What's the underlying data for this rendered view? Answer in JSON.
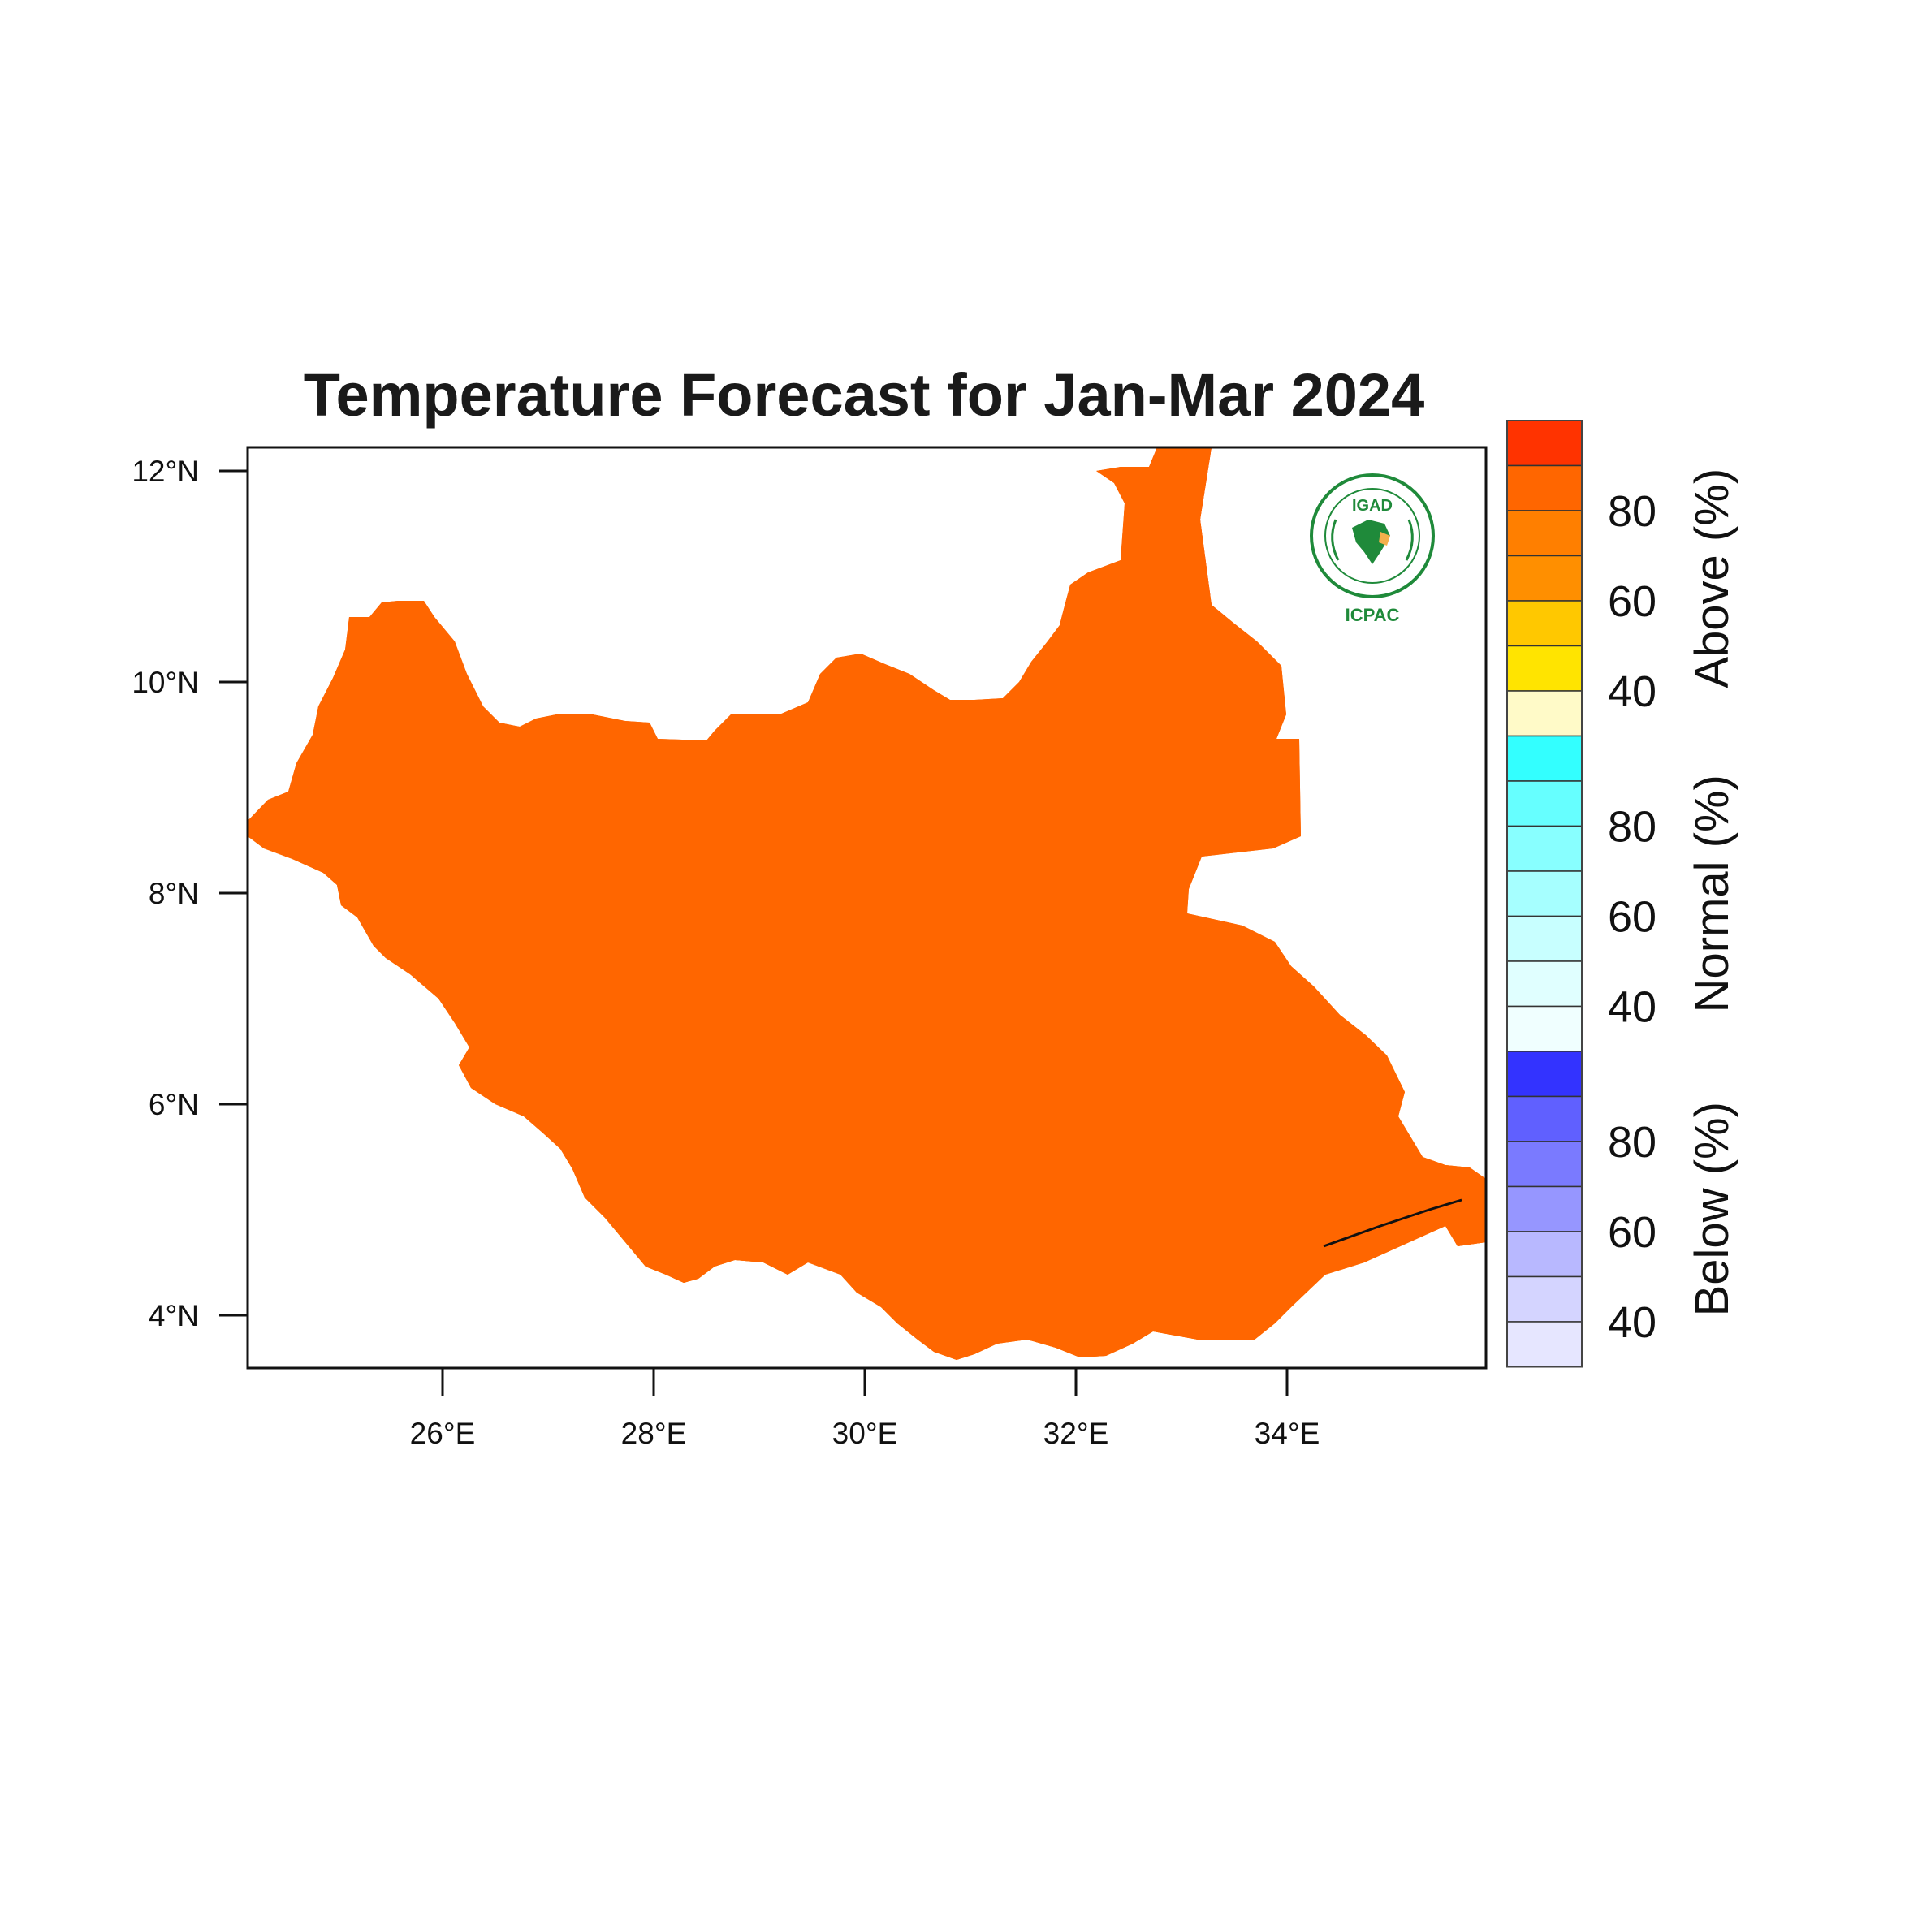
{
  "title": "Temperature Forecast for Jan-Mar 2024",
  "tiny_caption": "",
  "axes": {
    "lon_ticks": [
      "26°E",
      "28°E",
      "30°E",
      "32°E",
      "34°E"
    ],
    "lat_ticks": [
      "12°N",
      "10°N",
      "8°N",
      "6°N",
      "4°N"
    ]
  },
  "logo": {
    "top_text": "IGAD",
    "bottom_text": "ICPAC"
  },
  "colorbar": {
    "groups": [
      {
        "name": "Above (%)",
        "ticks": [
          "80",
          "60",
          "40"
        ],
        "colors": [
          "#ff3300",
          "#ff6600",
          "#ff7f00",
          "#ff8f00",
          "#ffc800",
          "#ffe400",
          "#fffac8"
        ]
      },
      {
        "name": "Normal (%)",
        "ticks": [
          "80",
          "60",
          "40"
        ],
        "colors": [
          "#33ffff",
          "#66ffff",
          "#88ffff",
          "#a6ffff",
          "#c8ffff",
          "#e0ffff",
          "#f0ffff"
        ]
      },
      {
        "name": "Below (%)",
        "ticks": [
          "80",
          "60",
          "40"
        ],
        "colors": [
          "#3333ff",
          "#6060ff",
          "#7a7aff",
          "#9696ff",
          "#b8b8ff",
          "#d4d4ff",
          "#e6e6ff"
        ]
      }
    ]
  },
  "map_colors": {
    "above_80_plus": "#ff3300",
    "above_70_80": "#ff6600",
    "above_60_70": "#ff7f00",
    "above_40_50": "#ffc800",
    "above_low": "#ffe400",
    "border": "#111111"
  }
}
